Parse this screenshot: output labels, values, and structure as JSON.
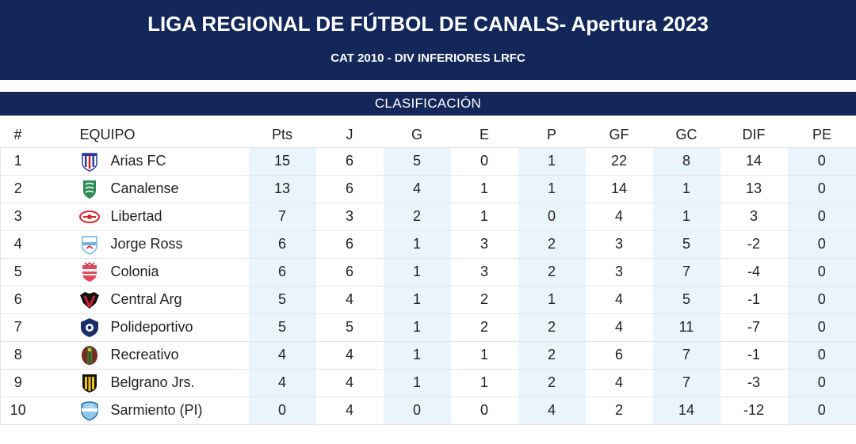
{
  "header": {
    "title": "LIGA REGIONAL DE FÚTBOL DE CANALS- Apertura 2023",
    "subtitle": "CAT 2010 - DIV INFERIORES LRFC"
  },
  "section": {
    "label": "CLASIFICACIÓN"
  },
  "table": {
    "columns": {
      "pos": "#",
      "team": "EQUIPO",
      "pts": "Pts",
      "j": "J",
      "g": "G",
      "e": "E",
      "p": "P",
      "gf": "GF",
      "gc": "GC",
      "dif": "DIF",
      "pe": "PE"
    },
    "rows": [
      {
        "pos": "1",
        "team": "Arias FC",
        "pts": "15",
        "j": "6",
        "g": "5",
        "e": "0",
        "p": "1",
        "gf": "22",
        "gc": "8",
        "dif": "14",
        "pe": "0",
        "crest": "arias-fc-crest-icon"
      },
      {
        "pos": "2",
        "team": "Canalense",
        "pts": "13",
        "j": "6",
        "g": "4",
        "e": "1",
        "p": "1",
        "gf": "14",
        "gc": "1",
        "dif": "13",
        "pe": "0",
        "crest": "canalense-crest-icon"
      },
      {
        "pos": "3",
        "team": "Libertad",
        "pts": "7",
        "j": "3",
        "g": "2",
        "e": "1",
        "p": "0",
        "gf": "4",
        "gc": "1",
        "dif": "3",
        "pe": "0",
        "crest": "libertad-crest-icon"
      },
      {
        "pos": "4",
        "team": "Jorge Ross",
        "pts": "6",
        "j": "6",
        "g": "1",
        "e": "3",
        "p": "2",
        "gf": "3",
        "gc": "5",
        "dif": "-2",
        "pe": "0",
        "crest": "jorge-ross-crest-icon"
      },
      {
        "pos": "5",
        "team": "Colonia",
        "pts": "6",
        "j": "6",
        "g": "1",
        "e": "3",
        "p": "2",
        "gf": "3",
        "gc": "7",
        "dif": "-4",
        "pe": "0",
        "crest": "colonia-crest-icon"
      },
      {
        "pos": "6",
        "team": "Central Arg",
        "pts": "5",
        "j": "4",
        "g": "1",
        "e": "2",
        "p": "1",
        "gf": "4",
        "gc": "5",
        "dif": "-1",
        "pe": "0",
        "crest": "central-arg-crest-icon"
      },
      {
        "pos": "7",
        "team": "Polideportivo",
        "pts": "5",
        "j": "5",
        "g": "1",
        "e": "2",
        "p": "2",
        "gf": "4",
        "gc": "11",
        "dif": "-7",
        "pe": "0",
        "crest": "polideportivo-crest-icon"
      },
      {
        "pos": "8",
        "team": "Recreativo",
        "pts": "4",
        "j": "4",
        "g": "1",
        "e": "1",
        "p": "2",
        "gf": "6",
        "gc": "7",
        "dif": "-1",
        "pe": "0",
        "crest": "recreativo-crest-icon"
      },
      {
        "pos": "9",
        "team": "Belgrano Jrs.",
        "pts": "4",
        "j": "4",
        "g": "1",
        "e": "1",
        "p": "2",
        "gf": "4",
        "gc": "7",
        "dif": "-3",
        "pe": "0",
        "crest": "belgrano-jrs-crest-icon"
      },
      {
        "pos": "10",
        "team": "Sarmiento (PI)",
        "pts": "0",
        "j": "4",
        "g": "0",
        "e": "0",
        "p": "4",
        "gf": "2",
        "gc": "14",
        "dif": "-12",
        "pe": "0",
        "crest": "sarmiento-crest-icon"
      }
    ]
  },
  "colors": {
    "header_bg": "#13275a",
    "shaded_column_bg": "#eaf4fc"
  }
}
